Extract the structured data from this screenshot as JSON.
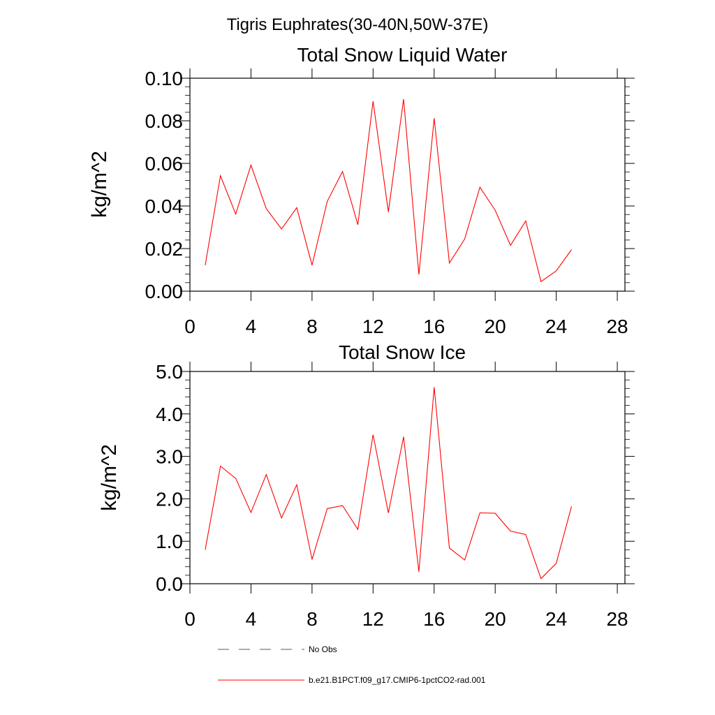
{
  "figure": {
    "suptitle": "Tigris Euphrates(30-40N,50W-37E)"
  },
  "colors": {
    "series": "#ff0000",
    "no_obs": "#4b5a8a",
    "axis": "#000000"
  },
  "chart_data": [
    {
      "type": "line",
      "title": "Total Snow Liquid Water",
      "xlabel": "",
      "ylabel": "kg/m^2",
      "xlim": [
        0,
        28.5
      ],
      "ylim": [
        0,
        0.1
      ],
      "xticks": [
        0,
        4,
        8,
        12,
        16,
        20,
        24,
        28
      ],
      "xtick_labels": [
        "0",
        "4",
        "8",
        "12",
        "16",
        "20",
        "24",
        "28"
      ],
      "yticks": [
        0,
        0.02,
        0.04,
        0.06,
        0.08,
        0.1
      ],
      "ytick_labels": [
        "0.00",
        "0.02",
        "0.04",
        "0.06",
        "0.08",
        "0.10"
      ],
      "grid": false,
      "x": [
        1,
        2,
        3,
        4,
        5,
        6,
        7,
        8,
        9,
        10,
        11,
        12,
        13,
        14,
        15,
        16,
        17,
        18,
        19,
        20,
        21,
        22,
        23,
        24,
        25
      ],
      "series": [
        {
          "name": "b.e21.B1PCT.f09_g17.CMIP6-1pctCO2-rad.001",
          "values": [
            0.0122,
            0.0542,
            0.0362,
            0.0592,
            0.0388,
            0.0292,
            0.0392,
            0.0122,
            0.0422,
            0.0562,
            0.0312,
            0.0892,
            0.0372,
            0.0902,
            0.0078,
            0.0812,
            0.0132,
            0.0245,
            0.0488,
            0.038,
            0.0215,
            0.033,
            0.0045,
            0.0095,
            0.0195
          ]
        }
      ]
    },
    {
      "type": "line",
      "title": "Total Snow Ice",
      "xlabel": "",
      "ylabel": "kg/m^2",
      "xlim": [
        0,
        28.5
      ],
      "ylim": [
        0,
        5
      ],
      "xticks": [
        0,
        4,
        8,
        12,
        16,
        20,
        24,
        28
      ],
      "xtick_labels": [
        "0",
        "4",
        "8",
        "12",
        "16",
        "20",
        "24",
        "28"
      ],
      "yticks": [
        0,
        1,
        2,
        3,
        4,
        5
      ],
      "ytick_labels": [
        "0.0",
        "1.0",
        "2.0",
        "3.0",
        "4.0",
        "5.0"
      ],
      "grid": false,
      "x": [
        1,
        2,
        3,
        4,
        5,
        6,
        7,
        8,
        9,
        10,
        11,
        12,
        13,
        14,
        15,
        16,
        17,
        18,
        19,
        20,
        21,
        22,
        23,
        24,
        25
      ],
      "series": [
        {
          "name": "b.e21.B1PCT.f09_g17.CMIP6-1pctCO2-rad.001",
          "values": [
            0.8,
            2.77,
            2.48,
            1.68,
            2.57,
            1.55,
            2.33,
            0.57,
            1.77,
            1.84,
            1.28,
            3.51,
            1.67,
            3.46,
            0.28,
            4.63,
            0.84,
            0.56,
            1.67,
            1.66,
            1.24,
            1.16,
            0.12,
            0.48,
            1.82
          ]
        }
      ]
    }
  ],
  "legend": {
    "placement": "bottom-left",
    "entries": [
      {
        "label": "No Obs",
        "style": "dashed",
        "color": "#4b5a8a"
      },
      {
        "label": "b.e21.B1PCT.f09_g17.CMIP6-1pctCO2-rad.001",
        "style": "solid",
        "color": "#ff0000"
      }
    ]
  }
}
